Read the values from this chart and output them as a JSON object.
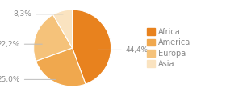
{
  "labels": [
    "Africa",
    "America",
    "Europa",
    "Asia"
  ],
  "values": [
    44.4,
    25.0,
    22.2,
    8.3
  ],
  "colors": [
    "#e8821e",
    "#f0a84e",
    "#f5c27a",
    "#fae3c0"
  ],
  "pct_labels": [
    "44,4%",
    "25,0%",
    "22,2%",
    "8,3%"
  ],
  "background_color": "#ffffff",
  "legend_fontsize": 7,
  "pct_fontsize": 6.5,
  "label_color": "#888888"
}
